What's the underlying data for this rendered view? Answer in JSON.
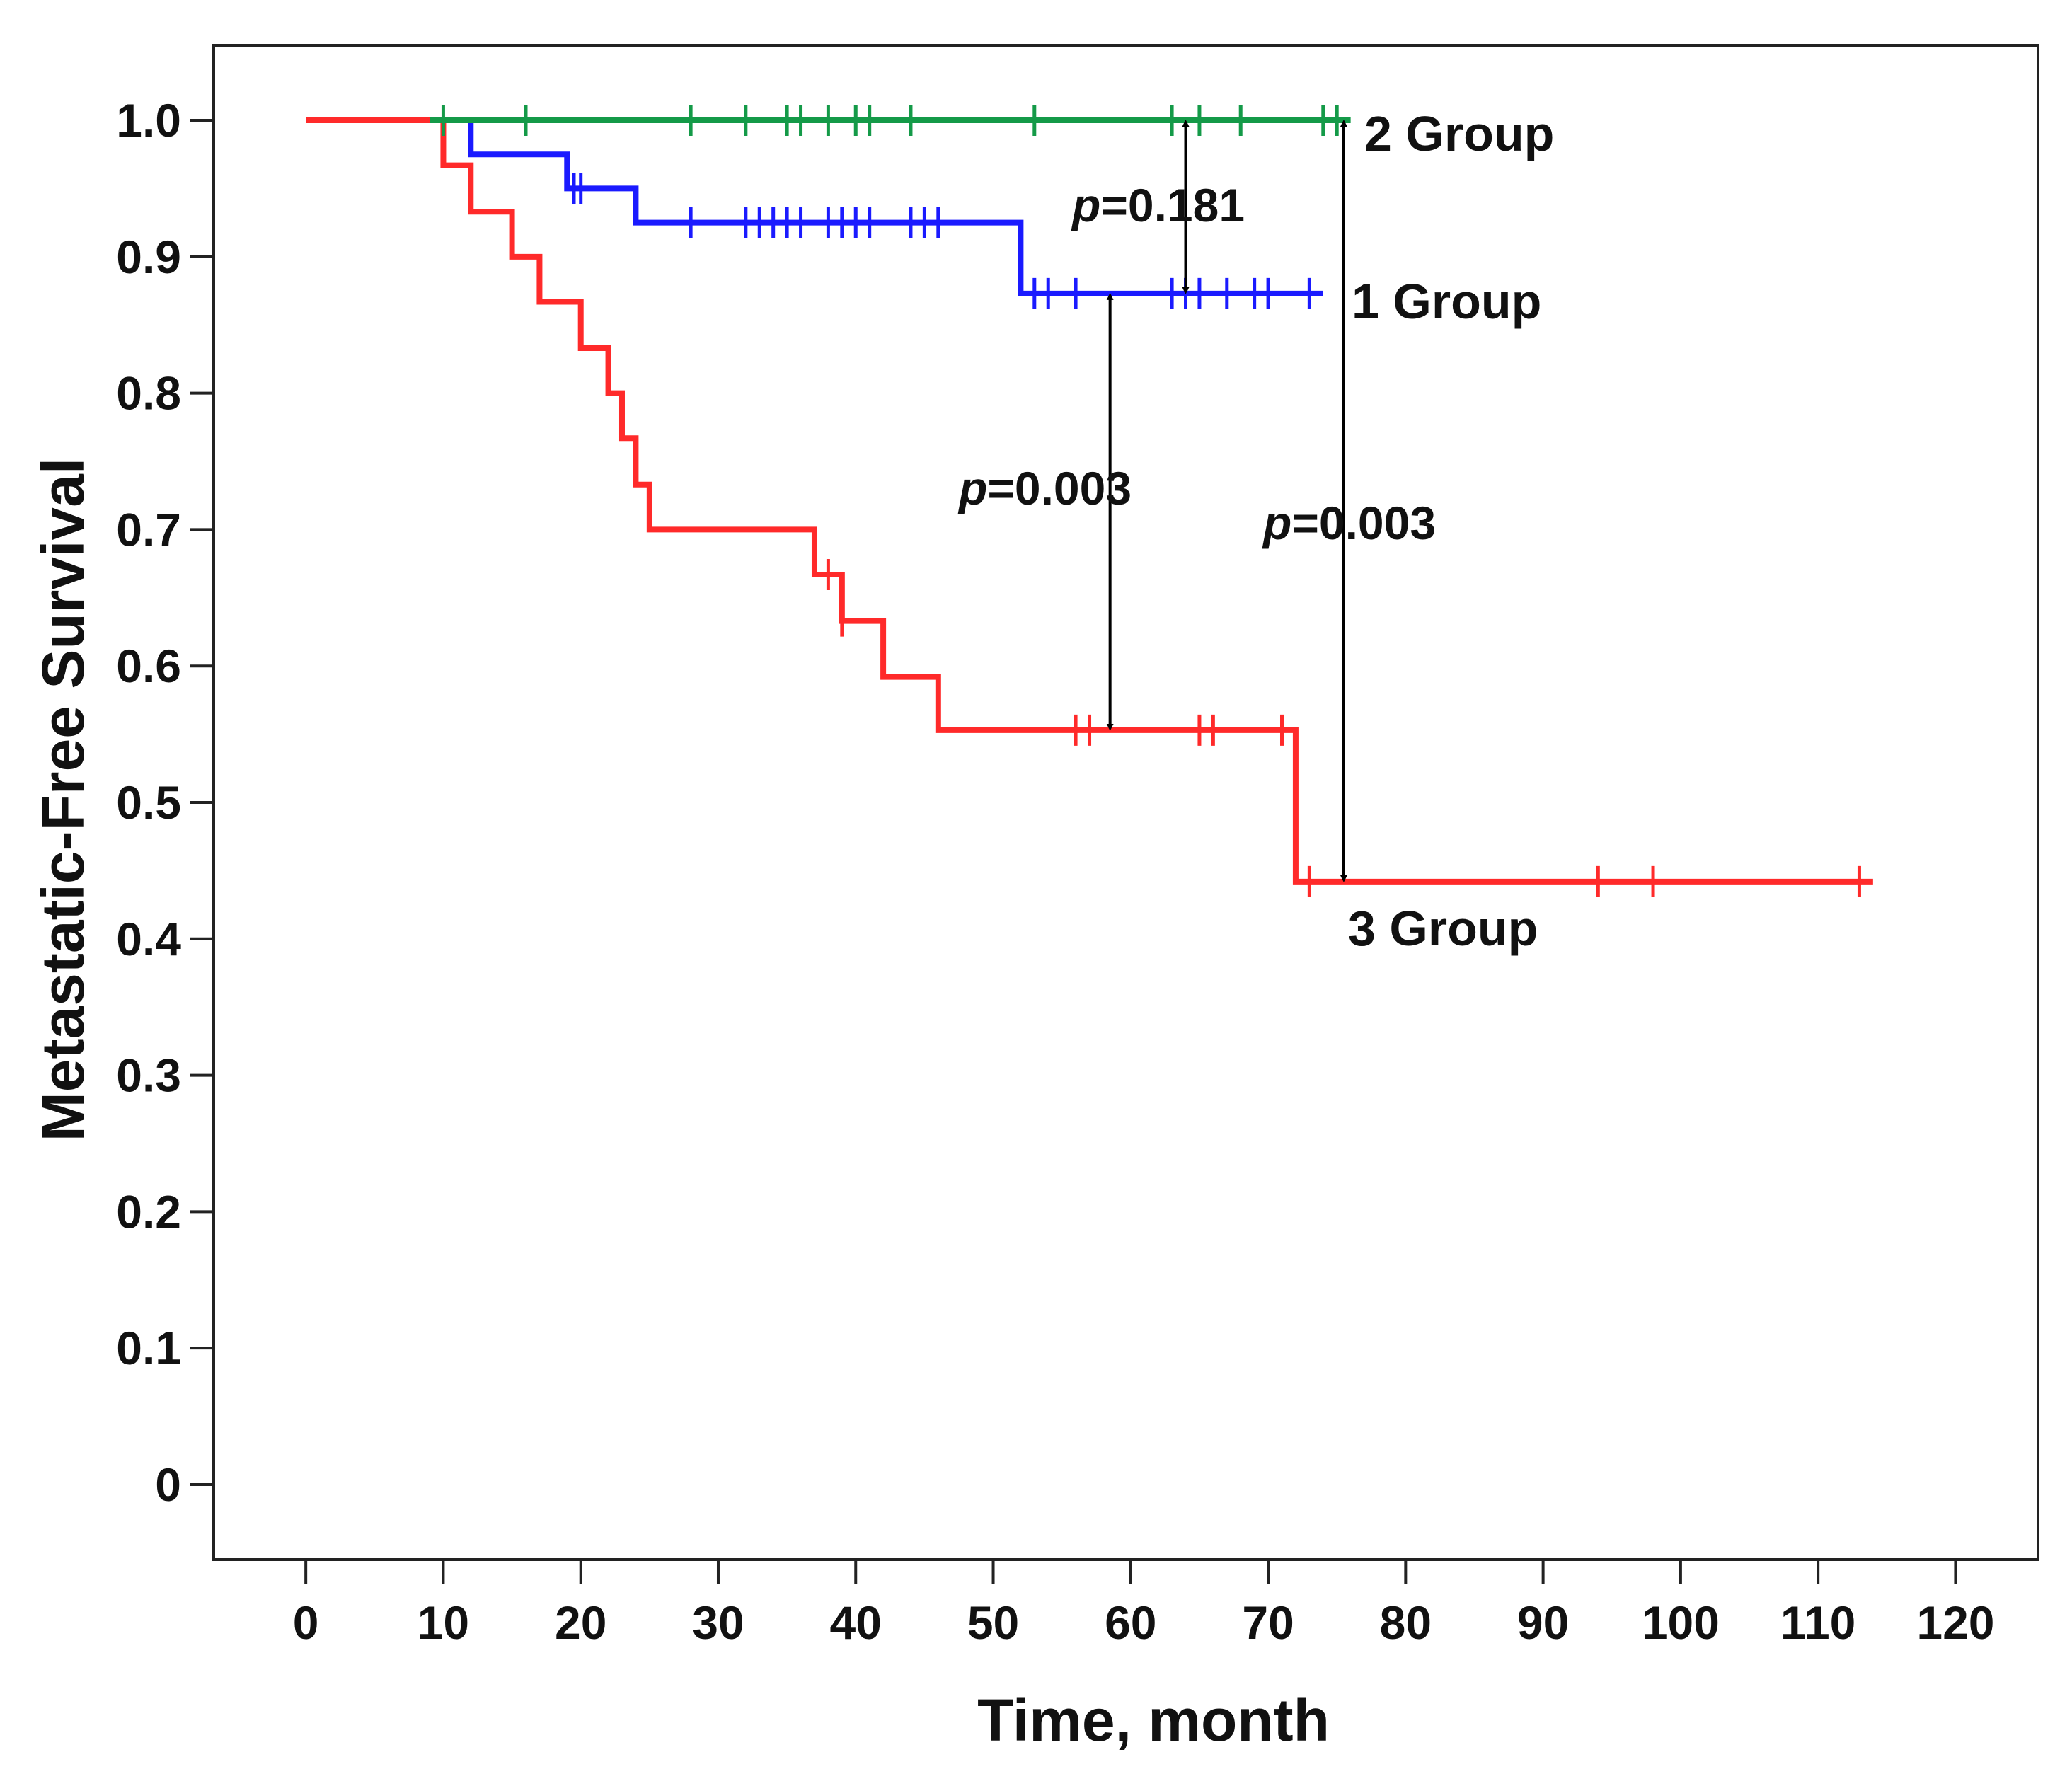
{
  "chart_data": {
    "type": "line",
    "subtype": "kaplan-meier",
    "title": "",
    "xlabel": "Time, month",
    "ylabel": "Metastatic-Free Survival",
    "xlim": [
      -6.7,
      126
    ],
    "ylim": [
      -0.055,
      1.055
    ],
    "x_ticks": [
      0,
      10,
      20,
      30,
      40,
      50,
      60,
      70,
      80,
      90,
      100,
      110,
      120
    ],
    "y_ticks": [
      0,
      0.1,
      0.2,
      0.3,
      0.4,
      0.5,
      0.6,
      0.7,
      0.8,
      0.9,
      1.0
    ],
    "x_tick_labels": [
      "0",
      "10",
      "20",
      "30",
      "40",
      "50",
      "60",
      "70",
      "80",
      "90",
      "100",
      "110",
      "120"
    ],
    "y_tick_labels": [
      "0",
      "0.1",
      "0.2",
      "0.3",
      "0.4",
      "0.5",
      "0.6",
      "0.7",
      "0.8",
      "0.9",
      "1.0"
    ],
    "grid": false,
    "series": [
      {
        "name": "3 Group",
        "label": "3 Group",
        "color": "#ff2a2a",
        "steps": [
          [
            0,
            1.0
          ],
          [
            10,
            0.967
          ],
          [
            12,
            0.933
          ],
          [
            15,
            0.9
          ],
          [
            17,
            0.867
          ],
          [
            20,
            0.833
          ],
          [
            22,
            0.8
          ],
          [
            23,
            0.767
          ],
          [
            24,
            0.733
          ],
          [
            25,
            0.7
          ],
          [
            37,
            0.667
          ],
          [
            39,
            0.633
          ],
          [
            42,
            0.592
          ],
          [
            46,
            0.553
          ],
          [
            72,
            0.442
          ]
        ],
        "end_x": 114,
        "censored": [
          [
            38,
            0.667
          ],
          [
            39,
            0.633
          ],
          [
            56,
            0.553
          ],
          [
            57,
            0.553
          ],
          [
            65,
            0.553
          ],
          [
            66,
            0.553
          ],
          [
            71,
            0.553
          ],
          [
            73,
            0.442
          ],
          [
            94,
            0.442
          ],
          [
            98,
            0.442
          ],
          [
            113,
            0.442
          ]
        ]
      },
      {
        "name": "1 Group",
        "label": "1 Group",
        "color": "#1a1aff",
        "steps": [
          [
            0,
            1.0
          ],
          [
            12,
            0.975
          ],
          [
            19,
            0.95
          ],
          [
            24,
            0.925
          ],
          [
            52,
            0.873
          ]
        ],
        "start_x": 9,
        "end_x": 74,
        "censored": [
          [
            19.5,
            0.95
          ],
          [
            20,
            0.95
          ],
          [
            28,
            0.925
          ],
          [
            32,
            0.925
          ],
          [
            33,
            0.925
          ],
          [
            34,
            0.925
          ],
          [
            35,
            0.925
          ],
          [
            36,
            0.925
          ],
          [
            38,
            0.925
          ],
          [
            39,
            0.925
          ],
          [
            40,
            0.925
          ],
          [
            41,
            0.925
          ],
          [
            44,
            0.925
          ],
          [
            45,
            0.925
          ],
          [
            46,
            0.925
          ],
          [
            53,
            0.873
          ],
          [
            54,
            0.873
          ],
          [
            56,
            0.873
          ],
          [
            63,
            0.873
          ],
          [
            64,
            0.873
          ],
          [
            65,
            0.873
          ],
          [
            67,
            0.873
          ],
          [
            69,
            0.873
          ],
          [
            70,
            0.873
          ],
          [
            73,
            0.873
          ]
        ]
      },
      {
        "name": "2 Group",
        "label": "2 Group",
        "color": "#149a48",
        "steps": [
          [
            0,
            1.0
          ]
        ],
        "start_x": 9,
        "end_x": 76,
        "censored": [
          [
            10,
            1.0
          ],
          [
            16,
            1.0
          ],
          [
            28,
            1.0
          ],
          [
            32,
            1.0
          ],
          [
            35,
            1.0
          ],
          [
            36,
            1.0
          ],
          [
            38,
            1.0
          ],
          [
            40,
            1.0
          ],
          [
            41,
            1.0
          ],
          [
            44,
            1.0
          ],
          [
            53,
            1.0
          ],
          [
            63,
            1.0
          ],
          [
            65,
            1.0
          ],
          [
            68,
            1.0
          ],
          [
            74,
            1.0
          ],
          [
            75,
            1.0
          ]
        ]
      }
    ],
    "annotations": [
      {
        "p_text": "p",
        "value_text": "=0.181",
        "x": 64,
        "y_from": 0.873,
        "y_to": 1.0
      },
      {
        "p_text": "p",
        "value_text": "=0.003",
        "x": 58.5,
        "y_from": 0.553,
        "y_to": 0.873
      },
      {
        "p_text": "p",
        "value_text": "=0.003",
        "x": 75.5,
        "y_from": 0.442,
        "y_to": 1.0
      }
    ]
  }
}
